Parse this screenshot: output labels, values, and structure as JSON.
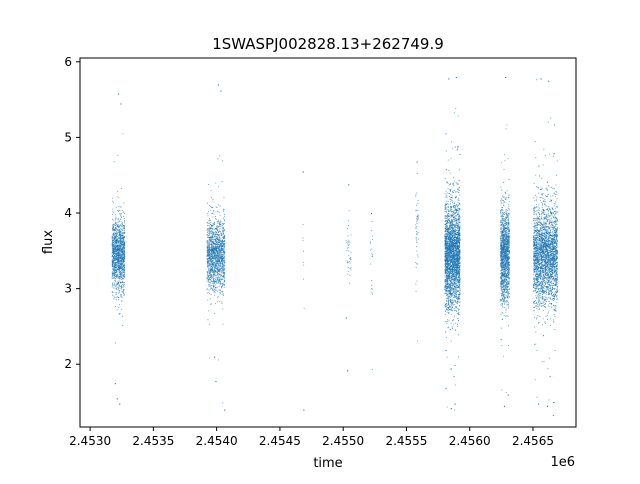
{
  "chart_data": {
    "type": "scatter",
    "title": "1SWASPJ002828.13+262749.9",
    "xlabel": "time",
    "ylabel": "flux",
    "x_offset_label": "1e6",
    "xlim": [
      2452920,
      2456840
    ],
    "ylim": [
      1.17,
      6.05
    ],
    "x_ticks": [
      2.453,
      2.4535,
      2.454,
      2.4545,
      2.455,
      2.4555,
      2.456,
      2.4565
    ],
    "x_tick_labels": [
      "2.4530",
      "2.4535",
      "2.4540",
      "2.4545",
      "2.4550",
      "2.4555",
      "2.4560",
      "2.4565"
    ],
    "y_ticks": [
      2,
      3,
      4,
      5,
      6
    ],
    "y_tick_labels": [
      "2",
      "3",
      "4",
      "5",
      "6"
    ],
    "grid": false,
    "marker_color": "#1f77b4",
    "clusters": [
      {
        "x_range": [
          2453170,
          2453270
        ],
        "center_y": 3.45,
        "spread": 0.42,
        "density": 1400,
        "outliers": [
          [
            2453220,
            5.58
          ],
          [
            2453240,
            5.45
          ],
          [
            2453210,
            1.55
          ],
          [
            2453230,
            1.48
          ],
          [
            2453195,
            1.75
          ]
        ]
      },
      {
        "x_range": [
          2453920,
          2454060
        ],
        "center_y": 3.45,
        "spread": 0.42,
        "density": 1500,
        "outliers": [
          [
            2454010,
            5.7
          ],
          [
            2454030,
            5.62
          ],
          [
            2453990,
            1.78
          ],
          [
            2454060,
            1.4
          ],
          [
            2453980,
            2.1
          ]
        ]
      },
      {
        "x_range": [
          2454670,
          2454690
        ],
        "center_y": 3.5,
        "spread": 0.6,
        "density": 8,
        "outliers": [
          [
            2454680,
            4.55
          ],
          [
            2454685,
            1.4
          ]
        ]
      },
      {
        "x_range": [
          2455020,
          2455060
        ],
        "center_y": 3.5,
        "spread": 0.4,
        "density": 40,
        "outliers": [
          [
            2455040,
            4.38
          ],
          [
            2455030,
            1.92
          ],
          [
            2455020,
            2.62
          ]
        ]
      },
      {
        "x_range": [
          2455210,
          2455230
        ],
        "center_y": 3.4,
        "spread": 0.4,
        "density": 20,
        "outliers": [
          [
            2455220,
            4.0
          ]
        ]
      },
      {
        "x_range": [
          2455570,
          2455590
        ],
        "center_y": 3.7,
        "spread": 0.5,
        "density": 50,
        "outliers": [
          [
            2455580,
            4.68
          ]
        ]
      },
      {
        "x_range": [
          2455800,
          2455920
        ],
        "center_y": 3.45,
        "spread": 0.62,
        "density": 3200,
        "outliers": [
          [
            2455830,
            5.78
          ],
          [
            2455890,
            5.8
          ],
          [
            2455850,
            1.42
          ],
          [
            2455880,
            1.48
          ]
        ]
      },
      {
        "x_range": [
          2456240,
          2456310
        ],
        "center_y": 3.45,
        "spread": 0.55,
        "density": 1500,
        "outliers": [
          [
            2456280,
            5.8
          ],
          [
            2456270,
            1.45
          ],
          [
            2456300,
            1.6
          ]
        ]
      },
      {
        "x_range": [
          2456500,
          2456690
        ],
        "center_y": 3.45,
        "spread": 0.58,
        "density": 3000,
        "outliers": [
          [
            2456560,
            5.78
          ],
          [
            2456620,
            5.75
          ],
          [
            2456540,
            1.48
          ],
          [
            2456610,
            1.45
          ],
          [
            2456660,
            1.5
          ]
        ]
      }
    ]
  }
}
